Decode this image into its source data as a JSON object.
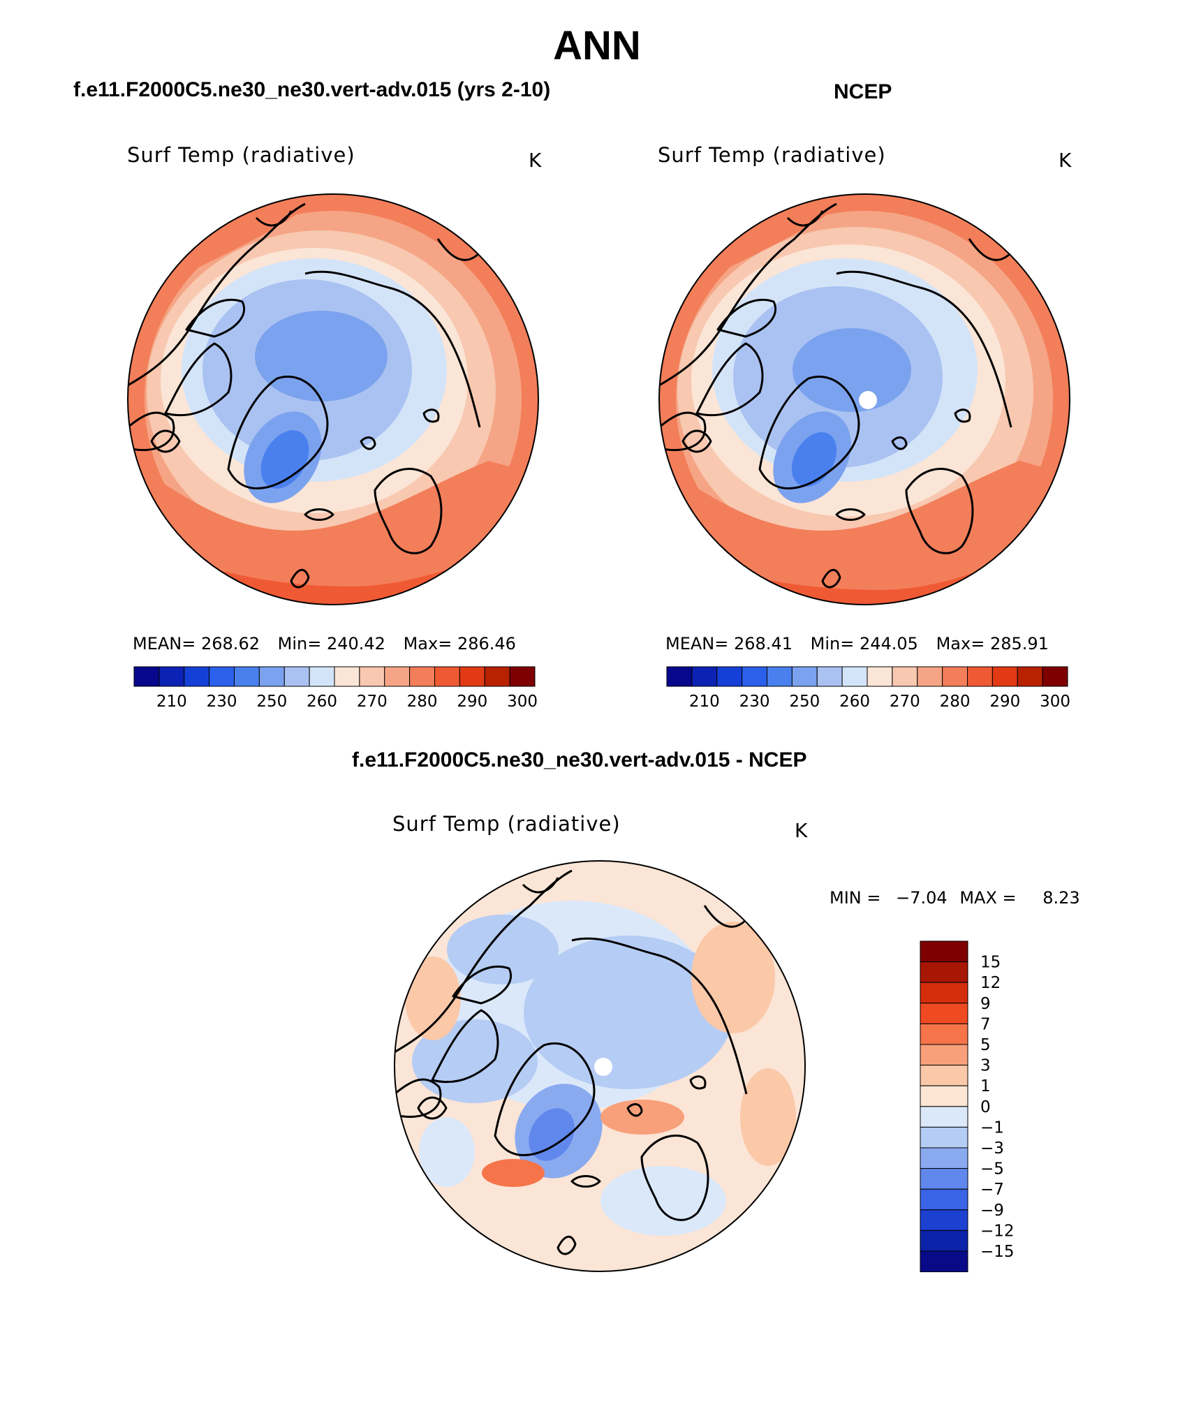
{
  "page": {
    "title": "ANN",
    "subtitle_diff": "f.e11.F2000C5.ne30_ne30.vert-adv.015 - NCEP"
  },
  "panels": [
    {
      "case_title": "f.e11.F2000C5.ne30_ne30.vert-adv.015 (yrs 2-10)",
      "var_title": "Surf Temp (radiative)",
      "units": "K",
      "stats": {
        "mean": "268.62",
        "min": "240.42",
        "max": "286.46"
      },
      "stats_text": {
        "mean_label": "MEAN=",
        "min_label": "Min=",
        "max_label": "Max="
      }
    },
    {
      "case_title": "NCEP",
      "var_title": "Surf Temp (radiative)",
      "units": "K",
      "stats": {
        "mean": "268.41",
        "min": "244.05",
        "max": "285.91"
      },
      "stats_text": {
        "mean_label": "MEAN=",
        "min_label": "Min=",
        "max_label": "Max="
      }
    }
  ],
  "diff_panel": {
    "var_title": "Surf Temp (radiative)",
    "units": "K",
    "min_label": "MIN =",
    "min": "−7.04",
    "max_label": "MAX =",
    "max": "8.23"
  },
  "colorbar_abs": {
    "colors": [
      "#08088c",
      "#0c22b4",
      "#1540d8",
      "#2a60ea",
      "#4a80ee",
      "#7ba2ee",
      "#aac2f2",
      "#d4e4f8",
      "#fbe5d6",
      "#f8c8b0",
      "#f5a585",
      "#f37e5a",
      "#ef5a34",
      "#e23a14",
      "#b82200",
      "#7e0000"
    ],
    "tick_labels": [
      "210",
      "230",
      "250",
      "260",
      "270",
      "280",
      "290",
      "300"
    ]
  },
  "colorbar_diff": {
    "colors": [
      "#7e0000",
      "#a81604",
      "#d42e0c",
      "#f04a22",
      "#f5744a",
      "#f7a07a",
      "#fbc8a8",
      "#fde6d4",
      "#dbe8fa",
      "#b5ccf4",
      "#8aaaf0",
      "#6088ec",
      "#3a64e6",
      "#1c40d0",
      "#0c22a8",
      "#080a88"
    ],
    "tick_labels": [
      "15",
      "12",
      "9",
      "7",
      "5",
      "3",
      "1",
      "0",
      "−1",
      "−3",
      "−5",
      "−7",
      "−9",
      "−12",
      "−15"
    ]
  },
  "map_legend_note": ""
}
